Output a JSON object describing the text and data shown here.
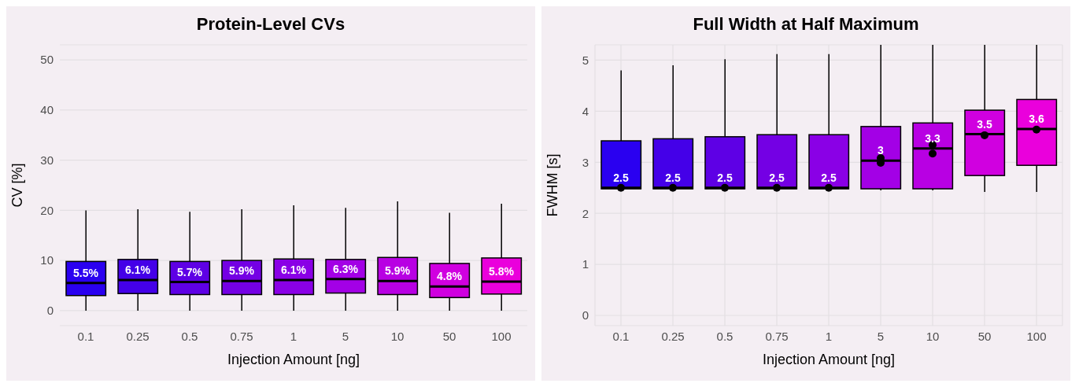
{
  "chart_data": [
    {
      "type": "box",
      "title": "Protein-Level CVs",
      "xlabel": "Injection Amount [ng]",
      "ylabel": "CV [%]",
      "categories": [
        "0.1",
        "0.25",
        "0.5",
        "0.75",
        "1",
        "5",
        "10",
        "50",
        "100"
      ],
      "colors": [
        "#2a00f0",
        "#4400e8",
        "#5e00e5",
        "#7400e4",
        "#8a00e6",
        "#a300e6",
        "#b800e3",
        "#d000e0",
        "#ea00dc"
      ],
      "boxes": [
        {
          "low": 0,
          "q1": 3,
          "median": 5.5,
          "q3": 9.8,
          "high": 20
        },
        {
          "low": 0,
          "q1": 3.4,
          "median": 6.1,
          "q3": 10.2,
          "high": 20.2
        },
        {
          "low": 0,
          "q1": 3.2,
          "median": 5.7,
          "q3": 9.8,
          "high": 19.7
        },
        {
          "low": 0,
          "q1": 3.2,
          "median": 5.9,
          "q3": 10,
          "high": 20.2
        },
        {
          "low": 0,
          "q1": 3.2,
          "median": 6.1,
          "q3": 10.3,
          "high": 21
        },
        {
          "low": 0,
          "q1": 3.5,
          "median": 6.3,
          "q3": 10.2,
          "high": 20.5
        },
        {
          "low": 0,
          "q1": 3.2,
          "median": 5.9,
          "q3": 10.6,
          "high": 21.8
        },
        {
          "low": 0,
          "q1": 2.6,
          "median": 4.8,
          "q3": 9.4,
          "high": 19.5
        },
        {
          "low": 0,
          "q1": 3.3,
          "median": 5.8,
          "q3": 10.5,
          "high": 21.3
        }
      ],
      "annotations": [
        {
          "text": "5.5%",
          "x": "0.1",
          "y": 5.5
        },
        {
          "text": "6.1%",
          "x": "0.25",
          "y": 6.1
        },
        {
          "text": "5.7%",
          "x": "0.5",
          "y": 5.7
        },
        {
          "text": "5.9%",
          "x": "0.75",
          "y": 5.9
        },
        {
          "text": "6.1%",
          "x": "1",
          "y": 6.1
        },
        {
          "text": "6.3%",
          "x": "5",
          "y": 6.3
        },
        {
          "text": "5.9%",
          "x": "10",
          "y": 5.9
        },
        {
          "text": "4.8%",
          "x": "50",
          "y": 4.8
        },
        {
          "text": "5.8%",
          "x": "100",
          "y": 5.8
        }
      ],
      "ylim": [
        -3,
        53
      ],
      "yticks": [
        0,
        10,
        20,
        30,
        40,
        50
      ],
      "grid": "y"
    },
    {
      "type": "box",
      "title": "Full Width at Half Maximum",
      "xlabel": "Injection Amount [ng]",
      "ylabel": "FWHM [s]",
      "categories": [
        "0.1",
        "0.25",
        "0.5",
        "0.75",
        "1",
        "5",
        "10",
        "50",
        "100"
      ],
      "colors": [
        "#2a00f0",
        "#4400e8",
        "#5e00e5",
        "#7400e4",
        "#8a00e6",
        "#a300e6",
        "#b800e3",
        "#d000e0",
        "#ea00dc"
      ],
      "boxes": [
        {
          "low": 2.48,
          "q1": 2.48,
          "median": 2.5,
          "q3": 3.42,
          "high": 4.8
        },
        {
          "low": 2.48,
          "q1": 2.48,
          "median": 2.5,
          "q3": 3.46,
          "high": 4.9
        },
        {
          "low": 2.48,
          "q1": 2.48,
          "median": 2.5,
          "q3": 3.5,
          "high": 5.02
        },
        {
          "low": 2.48,
          "q1": 2.48,
          "median": 2.5,
          "q3": 3.54,
          "high": 5.12
        },
        {
          "low": 2.48,
          "q1": 2.48,
          "median": 2.5,
          "q3": 3.54,
          "high": 5.12
        },
        {
          "low": 2.45,
          "q1": 2.48,
          "median": 3.03,
          "q3": 3.7,
          "high": 5.3
        },
        {
          "low": 2.45,
          "q1": 2.48,
          "median": 3.27,
          "q3": 3.77,
          "high": 5.3
        },
        {
          "low": 2.42,
          "q1": 2.74,
          "median": 3.55,
          "q3": 4.02,
          "high": 5.3
        },
        {
          "low": 2.42,
          "q1": 2.94,
          "median": 3.65,
          "q3": 4.23,
          "high": 5.3
        }
      ],
      "series": [
        {
          "type": "scatter",
          "color": "#000000",
          "x": [
            "0.1",
            "0.25",
            "0.5",
            "0.75",
            "1",
            "5",
            "5",
            "10",
            "10",
            "50",
            "100"
          ],
          "values": [
            2.5,
            2.5,
            2.5,
            2.5,
            2.5,
            3.08,
            2.99,
            3.34,
            3.17,
            3.53,
            3.64
          ]
        }
      ],
      "marker": "circle",
      "annotations": [
        {
          "text": "2.5",
          "x": "0.1",
          "y": 2.5
        },
        {
          "text": "2.5",
          "x": "0.25",
          "y": 2.5
        },
        {
          "text": "2.5",
          "x": "0.5",
          "y": 2.5
        },
        {
          "text": "2.5",
          "x": "0.75",
          "y": 2.5
        },
        {
          "text": "2.5",
          "x": "1",
          "y": 2.5
        },
        {
          "text": "3",
          "x": "5",
          "y": 3.03
        },
        {
          "text": "3.3",
          "x": "10",
          "y": 3.27
        },
        {
          "text": "3.5",
          "x": "50",
          "y": 3.55
        },
        {
          "text": "3.6",
          "x": "100",
          "y": 3.65
        }
      ],
      "ylim": [
        -0.2,
        5.3
      ],
      "yticks": [
        0,
        1,
        2,
        3,
        4,
        5
      ],
      "grid": true
    }
  ]
}
